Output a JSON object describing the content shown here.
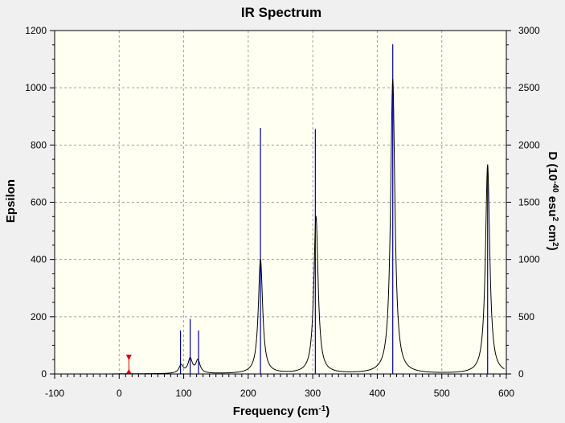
{
  "chart_data": {
    "type": "line",
    "title": "IR Spectrum",
    "xlabel": "Frequency (cm-1)",
    "ylabel": "Epsilon",
    "y2label": "D (10-40 esu2 cm2)",
    "xlim": [
      -100,
      600
    ],
    "ylim": [
      0,
      1200
    ],
    "y2lim": [
      0,
      3000
    ],
    "x_ticks": [
      -100,
      0,
      100,
      200,
      300,
      400,
      500,
      600
    ],
    "y_ticks": [
      0,
      200,
      400,
      600,
      800,
      1000,
      1200
    ],
    "y2_ticks": [
      0,
      500,
      1000,
      1500,
      2000,
      2500,
      3000
    ],
    "grid": true,
    "spectrum_peaks": [
      {
        "x": 96,
        "y": 28
      },
      {
        "x": 110,
        "y": 50
      },
      {
        "x": 122,
        "y": 45
      },
      {
        "x": 219,
        "y": 400
      },
      {
        "x": 305,
        "y": 550
      },
      {
        "x": 424,
        "y": 1030
      },
      {
        "x": 571,
        "y": 730
      }
    ],
    "spectrum_range": [
      -10,
      597
    ],
    "spectrum_linewidth": 8,
    "stick_series": {
      "name": "D",
      "axis": "right",
      "x": [
        95,
        110,
        123,
        219,
        304,
        424,
        571
      ],
      "y": [
        380,
        480,
        380,
        2150,
        2140,
        2880,
        1830
      ]
    },
    "marker_x": 15
  },
  "colors": {
    "background": "#f0f0f0",
    "plot_area": "#fffff2",
    "spectrum": "#000000",
    "sticks": "#0000aa",
    "grid": "#a0a0a0",
    "marker": "#e00000"
  }
}
